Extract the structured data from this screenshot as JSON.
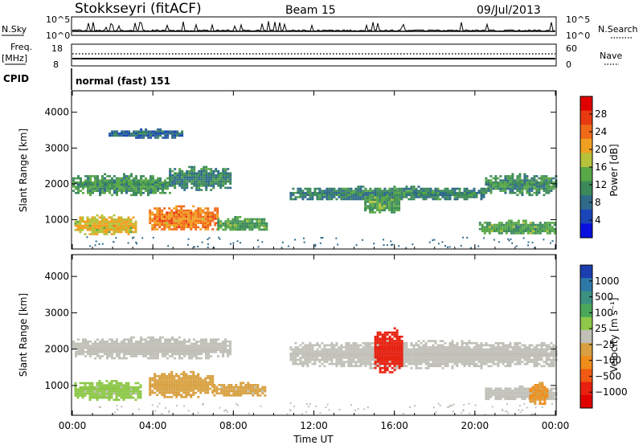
{
  "header": {
    "station": "Stokkseyri (fitACF)",
    "beam": "Beam 15",
    "date": "09/Jul/2013"
  },
  "top_panels": {
    "nsky_label": "N.Sky",
    "nsky_ticks": [
      "10^5",
      "10^0"
    ],
    "nsearch_label": "N.Search",
    "nsearch_ticks": [
      "10^5",
      "10^0"
    ],
    "freq_label": "Freq.",
    "freq_unit": "[MHz]",
    "freq_ticks": [
      "18",
      "8"
    ],
    "nave_label": "Nave",
    "nave_ticks": [
      "60",
      "0"
    ],
    "cpid_label": "CPID",
    "cpid_value": "normal (fast) 151"
  },
  "colors": {
    "power_scale": [
      "#0a10e0",
      "#1a45b8",
      "#2f6a8a",
      "#3c8a5a",
      "#58a848",
      "#b6c23a",
      "#f0a020",
      "#f06a18",
      "#e83a10",
      "#e00000"
    ],
    "velocity_scale": [
      "#1b3fb0",
      "#2e78a8",
      "#3c9080",
      "#4aa858",
      "#8ec84a",
      "#c0c0b8",
      "#d8a040",
      "#f08c1a",
      "#f05a12",
      "#e82010",
      "#e00000"
    ]
  },
  "chart_data": [
    {
      "type": "heatmap",
      "title": "Power",
      "xlabel": "Time UT",
      "ylabel": "Slant Range [km]",
      "x_ticks": [
        "00:00",
        "04:00",
        "08:00",
        "12:00",
        "16:00",
        "20:00",
        "00:00"
      ],
      "xlim_hours": [
        0,
        24
      ],
      "y_ticks": [
        "1000",
        "2000",
        "3000",
        "4000"
      ],
      "ylim_km": [
        180,
        4600
      ],
      "colorbar_label": "Power [dB]",
      "colorbar_ticks": [
        "4",
        "8",
        "12",
        "16",
        "20",
        "24",
        "28"
      ],
      "colorbar_range": [
        0,
        30
      ],
      "regions": [
        {
          "t0": 0.0,
          "t1": 4.8,
          "r0": 1700,
          "r1": 2300,
          "value": 11
        },
        {
          "t0": 4.8,
          "t1": 7.8,
          "r0": 1850,
          "r1": 2500,
          "value": 9
        },
        {
          "t0": 0.1,
          "t1": 3.2,
          "r0": 600,
          "r1": 1150,
          "value": 18
        },
        {
          "t0": 3.8,
          "t1": 7.2,
          "r0": 700,
          "r1": 1400,
          "value": 22
        },
        {
          "t0": 7.2,
          "t1": 9.6,
          "r0": 700,
          "r1": 1100,
          "value": 12
        },
        {
          "t0": 1.8,
          "t1": 5.5,
          "r0": 3300,
          "r1": 3550,
          "value": 6
        },
        {
          "t0": 10.8,
          "t1": 20.5,
          "r0": 1550,
          "r1": 1950,
          "value": 9
        },
        {
          "t0": 14.5,
          "t1": 16.2,
          "r0": 1200,
          "r1": 1700,
          "value": 12
        },
        {
          "t0": 20.5,
          "t1": 24.0,
          "r0": 1700,
          "r1": 2300,
          "value": 10
        },
        {
          "t0": 20.2,
          "t1": 24.0,
          "r0": 600,
          "r1": 1000,
          "value": 12
        }
      ]
    },
    {
      "type": "heatmap",
      "title": "Velocity",
      "xlabel": "Time UT",
      "ylabel": "Slant Range [km]",
      "x_ticks": [
        "00:00",
        "04:00",
        "08:00",
        "12:00",
        "16:00",
        "20:00",
        "00:00"
      ],
      "xlim_hours": [
        0,
        24
      ],
      "y_ticks": [
        "1000",
        "2000",
        "3000",
        "4000"
      ],
      "ylim_km": [
        180,
        4600
      ],
      "colorbar_label": "Velocity [m s⁻¹]",
      "colorbar_ticks": [
        "1000",
        "500",
        "100",
        "25",
        "−25",
        "−100",
        "−500",
        "−1000"
      ],
      "colorbar_range": [
        -1000,
        1000
      ],
      "regions": [
        {
          "t0": 0.0,
          "t1": 7.8,
          "r0": 1750,
          "r1": 2350,
          "value": 0
        },
        {
          "t0": 0.1,
          "t1": 3.4,
          "r0": 600,
          "r1": 1150,
          "value": 150
        },
        {
          "t0": 3.8,
          "t1": 7.0,
          "r0": 700,
          "r1": 1400,
          "value": -200
        },
        {
          "t0": 7.0,
          "t1": 9.6,
          "r0": 700,
          "r1": 1100,
          "value": -150
        },
        {
          "t0": 10.8,
          "t1": 24.0,
          "r0": 1500,
          "r1": 2250,
          "value": 0
        },
        {
          "t0": 15.0,
          "t1": 16.4,
          "r0": 1350,
          "r1": 2600,
          "value": -800
        },
        {
          "t0": 20.5,
          "t1": 24.0,
          "r0": 600,
          "r1": 1000,
          "value": 0
        },
        {
          "t0": 22.7,
          "t1": 23.6,
          "r0": 500,
          "r1": 1100,
          "value": -300
        }
      ]
    }
  ]
}
